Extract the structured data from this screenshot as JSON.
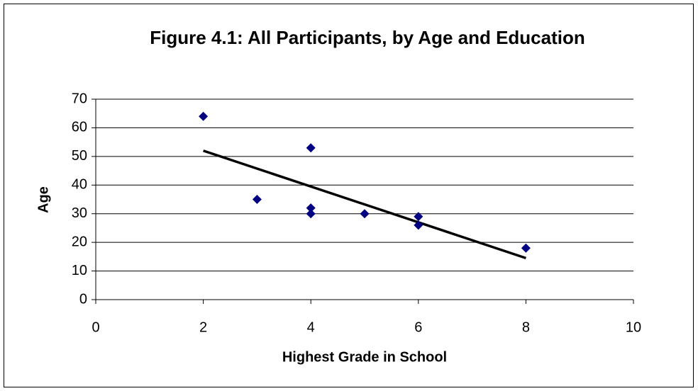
{
  "chart_data": {
    "type": "scatter",
    "title": "Figure 4.1: All Participants, by Age and Education",
    "x_label": "Highest Grade in School",
    "y_label": "Age",
    "x": [
      2,
      3,
      4,
      4,
      4,
      5,
      6,
      6,
      8
    ],
    "values": [
      64,
      35,
      53,
      32,
      30,
      30,
      29,
      26,
      18
    ],
    "color": "#000080",
    "trendline": {
      "x": [
        2,
        8
      ],
      "y": [
        52,
        14.5
      ],
      "color": "#000000"
    },
    "xlim": [
      0,
      10
    ],
    "xticks": [
      0,
      2,
      4,
      6,
      8,
      10
    ],
    "ylim": [
      0,
      70
    ],
    "yticks": [
      0,
      10,
      20,
      30,
      40,
      50,
      60,
      70
    ],
    "grid": true
  }
}
